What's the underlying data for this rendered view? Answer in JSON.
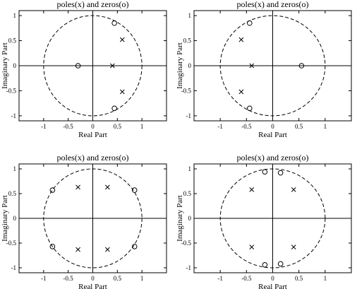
{
  "chart_data": [
    {
      "type": "scatter",
      "title": "poles(x) and zeros(o)",
      "xlabel": "Real Part",
      "ylabel": "Imaginary Part",
      "xlim": [
        -1.5,
        1.5
      ],
      "ylim": [
        -1.1,
        1.1
      ],
      "xticks": [
        "-1",
        "-0.5",
        "0",
        "0.5",
        "1"
      ],
      "yticks": [
        "-1",
        "-0.5",
        "0",
        "0.5",
        "1"
      ],
      "unit_circle": true,
      "grid": false,
      "series": [
        {
          "marker": "x",
          "points": [
            [
              0.6,
              0.52
            ],
            [
              0.6,
              -0.52
            ],
            [
              0.4,
              0.0
            ]
          ]
        },
        {
          "marker": "o",
          "points": [
            [
              0.44,
              0.85
            ],
            [
              0.44,
              -0.85
            ],
            [
              -0.3,
              0.0
            ]
          ]
        }
      ]
    },
    {
      "type": "scatter",
      "title": "poles(x) and zeros(o)",
      "xlabel": "Real Part",
      "ylabel": "Imaginary Part",
      "xlim": [
        -1.5,
        1.5
      ],
      "ylim": [
        -1.1,
        1.1
      ],
      "xticks": [
        "-1",
        "-0.5",
        "0",
        "0.5",
        "1"
      ],
      "yticks": [
        "-1",
        "-0.5",
        "0",
        "0.5",
        "1"
      ],
      "unit_circle": true,
      "grid": false,
      "series": [
        {
          "marker": "x",
          "points": [
            [
              -0.6,
              0.52
            ],
            [
              -0.6,
              -0.52
            ],
            [
              -0.4,
              0.0
            ]
          ]
        },
        {
          "marker": "o",
          "points": [
            [
              -0.44,
              0.85
            ],
            [
              -0.44,
              -0.85
            ],
            [
              0.55,
              0.0
            ]
          ]
        }
      ]
    },
    {
      "type": "scatter",
      "title": "poles(x) and zeros(o)",
      "xlabel": "Real Part",
      "ylabel": "Imaginary Part",
      "xlim": [
        -1.5,
        1.5
      ],
      "ylim": [
        -1.1,
        1.1
      ],
      "xticks": [
        "-1",
        "-0.5",
        "0",
        "0.5",
        "1"
      ],
      "yticks": [
        "-1",
        "-0.5",
        "0",
        "0.5",
        "1"
      ],
      "unit_circle": true,
      "grid": false,
      "series": [
        {
          "marker": "x",
          "points": [
            [
              -0.3,
              0.63
            ],
            [
              0.3,
              0.63
            ],
            [
              -0.3,
              -0.63
            ],
            [
              0.3,
              -0.63
            ]
          ]
        },
        {
          "marker": "o",
          "points": [
            [
              -0.82,
              0.57
            ],
            [
              0.85,
              0.57
            ],
            [
              -0.82,
              -0.57
            ],
            [
              0.85,
              -0.57
            ]
          ]
        }
      ]
    },
    {
      "type": "scatter",
      "title": "poles(x) and zeros(o)",
      "xlabel": "Real Part",
      "ylabel": "Imaginary Part",
      "xlim": [
        -1.5,
        1.5
      ],
      "ylim": [
        -1.1,
        1.1
      ],
      "xticks": [
        "-1",
        "-0.5",
        "0",
        "0.5",
        "1"
      ],
      "yticks": [
        "-1",
        "-0.5",
        "0",
        "0.5",
        "1"
      ],
      "unit_circle": true,
      "grid": false,
      "series": [
        {
          "marker": "x",
          "points": [
            [
              -0.4,
              0.58
            ],
            [
              0.4,
              0.58
            ],
            [
              -0.4,
              -0.58
            ],
            [
              0.4,
              -0.58
            ]
          ]
        },
        {
          "marker": "o",
          "points": [
            [
              -0.15,
              0.94
            ],
            [
              0.15,
              0.92
            ],
            [
              -0.15,
              -0.94
            ],
            [
              0.15,
              -0.92
            ]
          ]
        }
      ]
    }
  ]
}
